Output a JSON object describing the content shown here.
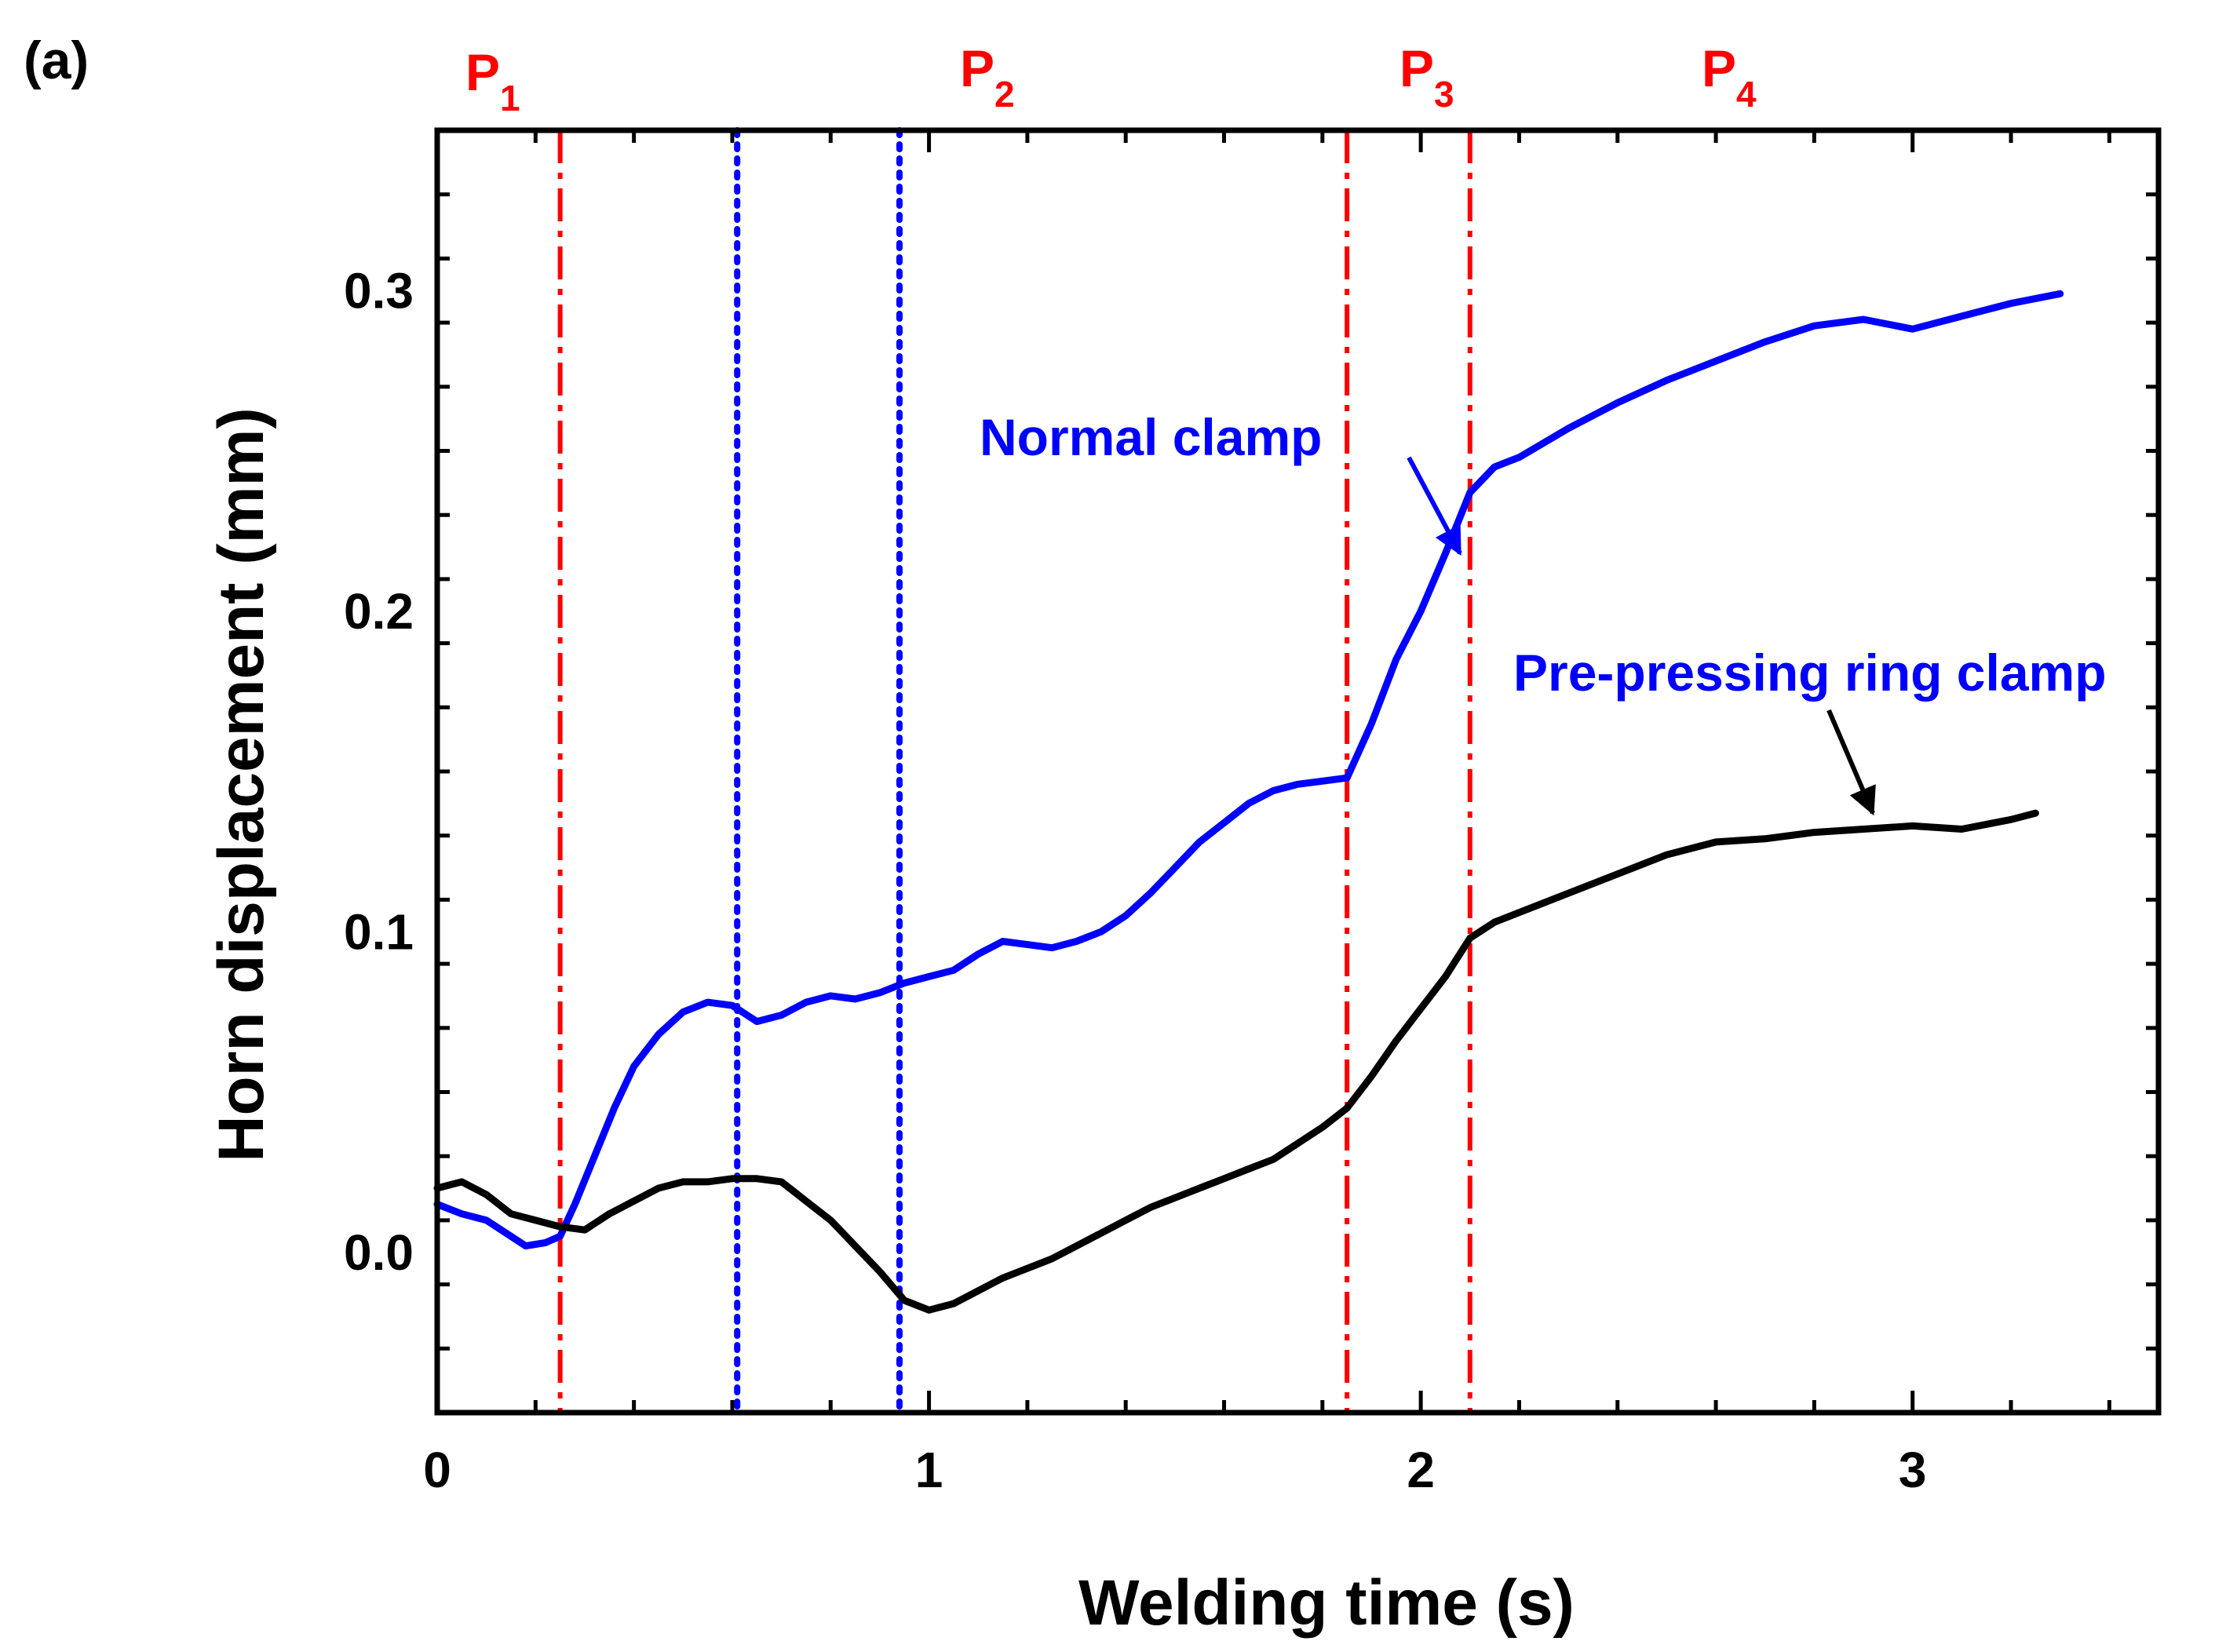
{
  "chart_data": {
    "type": "line",
    "panel_label": "(a)",
    "xlabel": "Welding time (s)",
    "ylabel": "Horn displacement (mm)",
    "xlim": [
      0,
      3.5
    ],
    "ylim": [
      -0.05,
      0.35
    ],
    "x_ticks": [
      {
        "value": 0,
        "label": "0"
      },
      {
        "value": 1,
        "label": "1"
      },
      {
        "value": 2,
        "label": "2"
      },
      {
        "value": 3,
        "label": "3"
      }
    ],
    "y_ticks": [
      {
        "value": 0.0,
        "label": "0.0"
      },
      {
        "value": 0.1,
        "label": "0.1"
      },
      {
        "value": 0.2,
        "label": "0.2"
      },
      {
        "value": 0.3,
        "label": "0.3"
      }
    ],
    "grid": false,
    "series": [
      {
        "name": "Normal clamp",
        "color": "#0000ff",
        "x": [
          0,
          0.05,
          0.1,
          0.15,
          0.18,
          0.22,
          0.25,
          0.28,
          0.32,
          0.36,
          0.4,
          0.45,
          0.5,
          0.55,
          0.6,
          0.62,
          0.65,
          0.7,
          0.75,
          0.8,
          0.85,
          0.9,
          0.95,
          1.0,
          1.05,
          1.1,
          1.15,
          1.2,
          1.25,
          1.3,
          1.35,
          1.4,
          1.45,
          1.5,
          1.55,
          1.6,
          1.65,
          1.7,
          1.75,
          1.8,
          1.85,
          1.9,
          1.95,
          2.0,
          2.05,
          2.1,
          2.15,
          2.2,
          2.3,
          2.4,
          2.5,
          2.6,
          2.7,
          2.8,
          2.9,
          3.0,
          3.1,
          3.2,
          3.3
        ],
        "y": [
          0.015,
          0.012,
          0.01,
          0.005,
          0.002,
          0.003,
          0.005,
          0.015,
          0.03,
          0.045,
          0.058,
          0.068,
          0.075,
          0.078,
          0.077,
          0.075,
          0.072,
          0.074,
          0.078,
          0.08,
          0.079,
          0.081,
          0.084,
          0.086,
          0.088,
          0.093,
          0.097,
          0.096,
          0.095,
          0.097,
          0.1,
          0.105,
          0.112,
          0.12,
          0.128,
          0.134,
          0.14,
          0.144,
          0.146,
          0.147,
          0.148,
          0.165,
          0.185,
          0.2,
          0.218,
          0.237,
          0.245,
          0.248,
          0.257,
          0.265,
          0.272,
          0.278,
          0.284,
          0.289,
          0.291,
          0.288,
          0.292,
          0.296,
          0.299
        ]
      },
      {
        "name": "Pre-pressing ring clamp",
        "color": "#000000",
        "x": [
          0,
          0.05,
          0.1,
          0.15,
          0.2,
          0.25,
          0.3,
          0.35,
          0.4,
          0.45,
          0.5,
          0.55,
          0.6,
          0.65,
          0.7,
          0.75,
          0.8,
          0.85,
          0.9,
          0.95,
          1.0,
          1.05,
          1.1,
          1.15,
          1.2,
          1.25,
          1.3,
          1.35,
          1.4,
          1.45,
          1.5,
          1.55,
          1.6,
          1.65,
          1.7,
          1.75,
          1.8,
          1.85,
          1.9,
          1.95,
          2.0,
          2.05,
          2.1,
          2.15,
          2.2,
          2.3,
          2.4,
          2.5,
          2.6,
          2.7,
          2.8,
          2.9,
          3.0,
          3.1,
          3.2,
          3.25
        ],
        "y": [
          0.02,
          0.022,
          0.018,
          0.012,
          0.01,
          0.008,
          0.007,
          0.012,
          0.016,
          0.02,
          0.022,
          0.022,
          0.023,
          0.023,
          0.022,
          0.016,
          0.01,
          0.002,
          -0.006,
          -0.015,
          -0.018,
          -0.016,
          -0.012,
          -0.008,
          -0.005,
          -0.002,
          0.002,
          0.006,
          0.01,
          0.014,
          0.017,
          0.02,
          0.023,
          0.026,
          0.029,
          0.034,
          0.039,
          0.045,
          0.055,
          0.066,
          0.076,
          0.086,
          0.098,
          0.103,
          0.106,
          0.112,
          0.118,
          0.124,
          0.128,
          0.129,
          0.131,
          0.132,
          0.133,
          0.132,
          0.135,
          0.137
        ]
      }
    ],
    "vertical_lines": [
      {
        "x": 0.25,
        "color": "#ff0000",
        "style": "dash-dot"
      },
      {
        "x": 0.61,
        "color": "#0000ff",
        "style": "dotted"
      },
      {
        "x": 0.94,
        "color": "#0000ff",
        "style": "dotted"
      },
      {
        "x": 1.85,
        "color": "#ff0000",
        "style": "dash-dot"
      },
      {
        "x": 2.1,
        "color": "#ff0000",
        "style": "dash-dot"
      }
    ],
    "phase_labels": [
      {
        "base": "P",
        "sub": "1",
        "color": "#ff0000"
      },
      {
        "base": "P",
        "sub": "2",
        "color": "#ff0000"
      },
      {
        "base": "P",
        "sub": "3",
        "color": "#ff0000"
      },
      {
        "base": "P",
        "sub": "4",
        "color": "#ff0000"
      }
    ],
    "annotations": [
      {
        "text": "Normal clamp",
        "color": "#0000ff",
        "points_to_x": 2.02,
        "points_to_y": 0.217
      },
      {
        "text": "Pre-pressing ring clamp",
        "color": "#0000ff",
        "points_to_x": 2.84,
        "points_to_y": 0.137
      }
    ]
  }
}
